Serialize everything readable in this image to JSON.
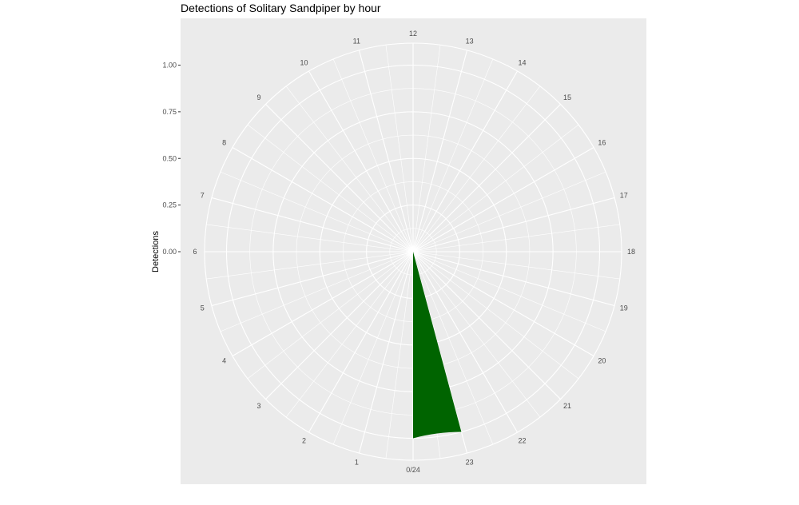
{
  "chart_data": {
    "type": "bar",
    "coordinate_system": "polar",
    "title": "Detections of Solitary Sandpiper by hour",
    "ylabel": "Detections",
    "xlabel": "",
    "ylim": [
      0,
      1
    ],
    "y_ticks": [
      "0.00",
      "0.25",
      "0.50",
      "0.75",
      "1.00"
    ],
    "angle_labels": [
      "0/24",
      "1",
      "2",
      "3",
      "4",
      "5",
      "6",
      "7",
      "8",
      "9",
      "10",
      "11",
      "12",
      "13",
      "14",
      "15",
      "16",
      "17",
      "18",
      "19",
      "20",
      "21",
      "22",
      "23"
    ],
    "categories": [
      0,
      1,
      2,
      3,
      4,
      5,
      6,
      7,
      8,
      9,
      10,
      11,
      12,
      13,
      14,
      15,
      16,
      17,
      18,
      19,
      20,
      21,
      22,
      23
    ],
    "values": [
      0,
      0,
      0,
      0,
      0,
      0,
      0,
      0,
      0,
      0,
      0,
      0,
      0,
      0,
      0,
      0,
      0,
      0,
      0,
      0,
      0,
      0,
      0,
      1
    ],
    "bar_color": "#006400",
    "panel_background": "#ebebeb",
    "grid_color": "#ffffff",
    "grid": true,
    "legend": "none"
  }
}
